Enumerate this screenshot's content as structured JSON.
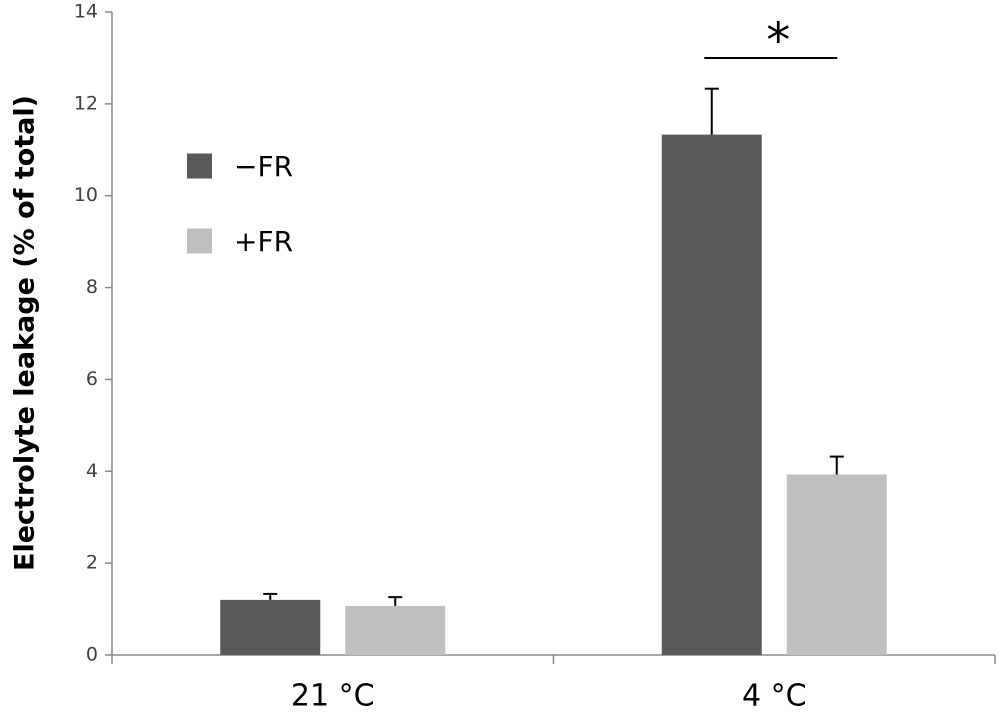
{
  "chart_data": {
    "type": "bar",
    "y_label": "Electrolyte leakage (% of total)",
    "categories": [
      "21 °C",
      "4 °C"
    ],
    "series": [
      {
        "name": "−FR",
        "color": "#595959",
        "values": [
          1.2,
          11.33
        ],
        "errors": [
          0.13,
          1.0
        ]
      },
      {
        "name": "+FR",
        "color": "#bfbfbf",
        "values": [
          1.07,
          3.93
        ],
        "errors": [
          0.19,
          0.39
        ]
      }
    ],
    "annotation": "*",
    "ylim": [
      0,
      14
    ],
    "yticks": [
      0,
      2,
      4,
      6,
      8,
      10,
      12,
      14
    ],
    "grid": false,
    "legend": "upper left"
  }
}
